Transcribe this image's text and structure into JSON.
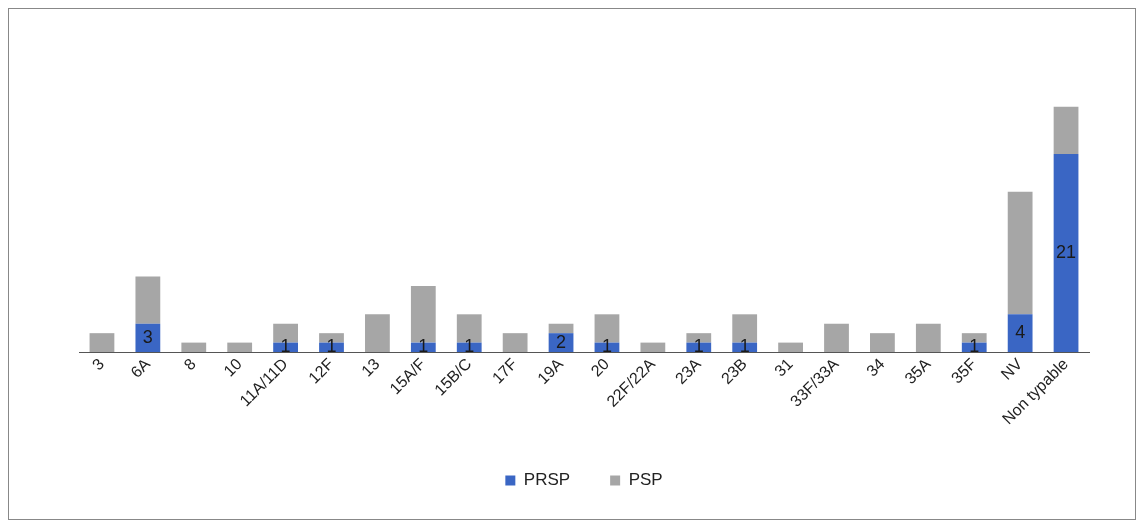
{
  "chart_data": {
    "type": "bar",
    "stacked": true,
    "legend": "bottom",
    "grid": false,
    "categories": [
      "3",
      "6A",
      "8",
      "10",
      "11A/11D",
      "12F",
      "13",
      "15A/F",
      "15B/C",
      "17F",
      "19A",
      "20",
      "22F/22A",
      "23A",
      "23B",
      "31",
      "33F/33A",
      "34",
      "35A",
      "35F",
      "NV",
      "Non typable"
    ],
    "series": [
      {
        "name": "PRSP",
        "color": "#3a66c4",
        "values": [
          0,
          3,
          0,
          0,
          1,
          1,
          0,
          1,
          1,
          0,
          2,
          1,
          0,
          1,
          1,
          0,
          0,
          0,
          0,
          1,
          4,
          21
        ],
        "value_labels": [
          null,
          "3",
          null,
          null,
          "1",
          "1",
          null,
          "1",
          "1",
          null,
          "2",
          "1",
          null,
          "1",
          "1",
          null,
          null,
          null,
          null,
          "1",
          "4",
          "21"
        ]
      },
      {
        "name": "PSP",
        "color": "#a6a6a6",
        "values": [
          2,
          5,
          1,
          1,
          2,
          1,
          4,
          6,
          3,
          2,
          1,
          3,
          1,
          1,
          3,
          1,
          3,
          2,
          3,
          1,
          13,
          5
        ]
      }
    ]
  }
}
